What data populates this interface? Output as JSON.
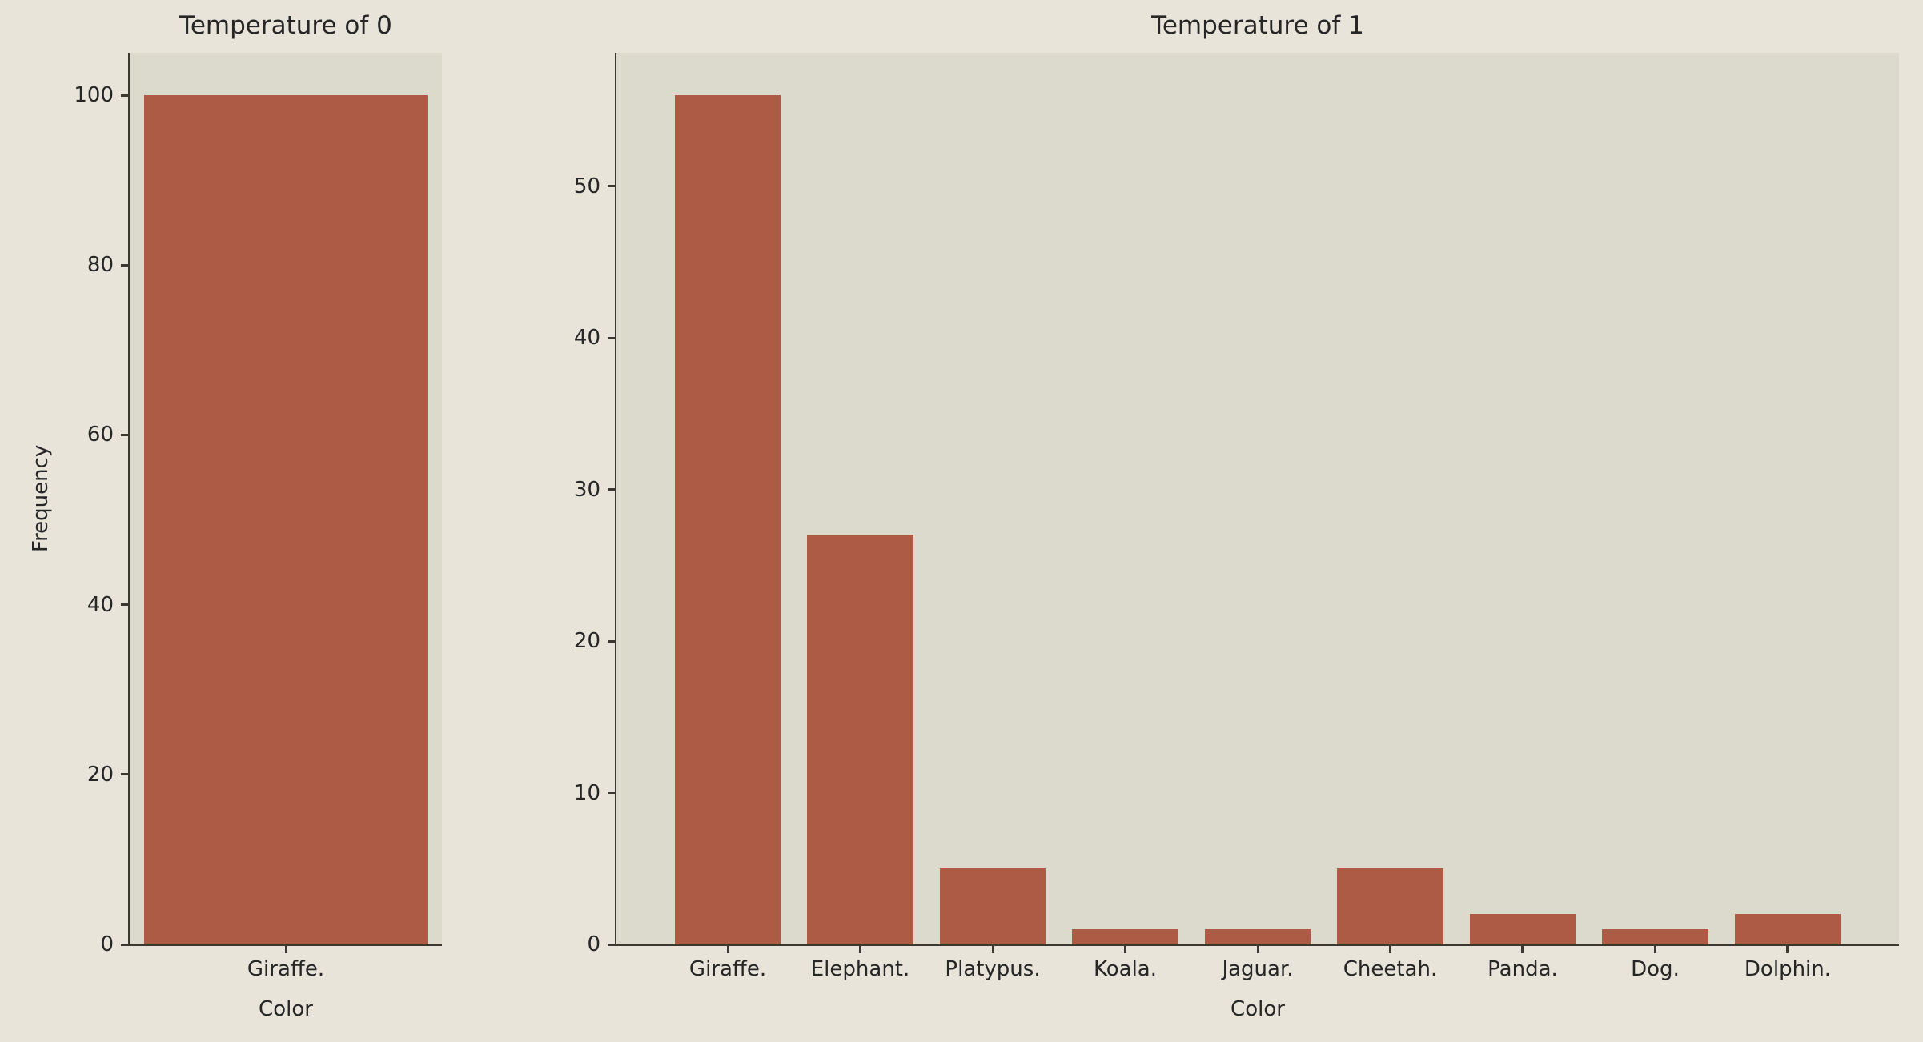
{
  "figure": {
    "background": "#e8e4da",
    "axes_background": "#dcd9cd",
    "bar_color": "#ad5b45",
    "spine_color": "#3a382f",
    "text_color": "#262626"
  },
  "chart_data": [
    {
      "type": "bar",
      "title": "Temperature of 0",
      "xlabel": "Color",
      "ylabel": "Frequency",
      "categories": [
        "Giraffe."
      ],
      "values": [
        100
      ],
      "ylim": [
        0,
        105
      ],
      "yticks": [
        0,
        20,
        40,
        60,
        80,
        100
      ],
      "xlim": [
        -0.44,
        0.44
      ],
      "bar_width": 0.8,
      "grid": false
    },
    {
      "type": "bar",
      "title": "Temperature of 1",
      "xlabel": "Color",
      "ylabel": "",
      "categories": [
        "Giraffe.",
        "Elephant.",
        "Platypus.",
        "Koala.",
        "Jaguar.",
        "Cheetah.",
        "Panda.",
        "Dog.",
        "Dolphin."
      ],
      "values": [
        56,
        27,
        5,
        1,
        1,
        5,
        2,
        1,
        2
      ],
      "ylim": [
        0,
        58.8
      ],
      "yticks": [
        0,
        10,
        20,
        30,
        40,
        50
      ],
      "xlim": [
        -0.84,
        8.84
      ],
      "bar_width": 0.8,
      "grid": false
    }
  ]
}
